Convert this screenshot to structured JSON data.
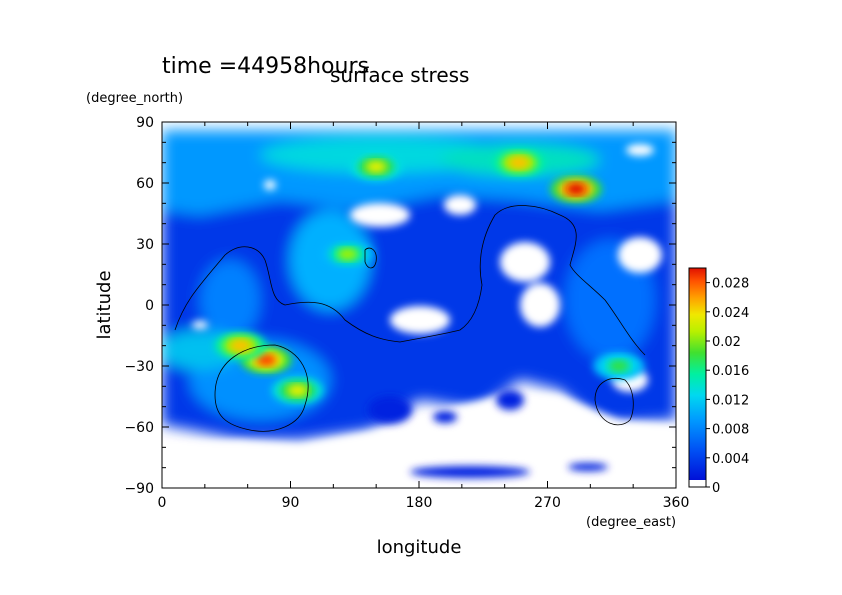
{
  "chart_data": {
    "type": "heatmap",
    "title": "surface stress",
    "subtitle": "time =44958hours",
    "xlabel": "longitude",
    "ylabel": "latitude",
    "x_units": "(degree_east)",
    "y_units": "(degree_north)",
    "xlim": [
      0,
      360
    ],
    "ylim": [
      -90,
      90
    ],
    "xticks": [
      "0",
      "90",
      "180",
      "270",
      "360"
    ],
    "yticks": [
      "90",
      "60",
      "30",
      "0",
      "−30",
      "−60",
      "−90"
    ],
    "colorbar": {
      "min": 0,
      "max": 0.03,
      "ticks": [
        "0",
        "0.004",
        "0.008",
        "0.012",
        "0.016",
        "0.02",
        "0.024",
        "0.028"
      ],
      "colors": [
        "#ffffff",
        "#0010d8",
        "#0048f0",
        "#0088ff",
        "#00b8ff",
        "#00e0e0",
        "#00f0a0",
        "#30e040",
        "#a0f000",
        "#e8f000",
        "#ffc000",
        "#ff8000",
        "#ff4000",
        "#e01000"
      ]
    },
    "hotspots": [
      {
        "lon": 150,
        "lat": 68,
        "value": 0.022
      },
      {
        "lon": 250,
        "lat": 70,
        "value": 0.024
      },
      {
        "lon": 290,
        "lat": 57,
        "value": 0.03
      },
      {
        "lon": 73,
        "lat": -27,
        "value": 0.028
      },
      {
        "lon": 55,
        "lat": -20,
        "value": 0.024
      },
      {
        "lon": 95,
        "lat": -42,
        "value": 0.02
      },
      {
        "lon": 130,
        "lat": 25,
        "value": 0.018
      },
      {
        "lon": 320,
        "lat": -30,
        "value": 0.016
      }
    ]
  }
}
